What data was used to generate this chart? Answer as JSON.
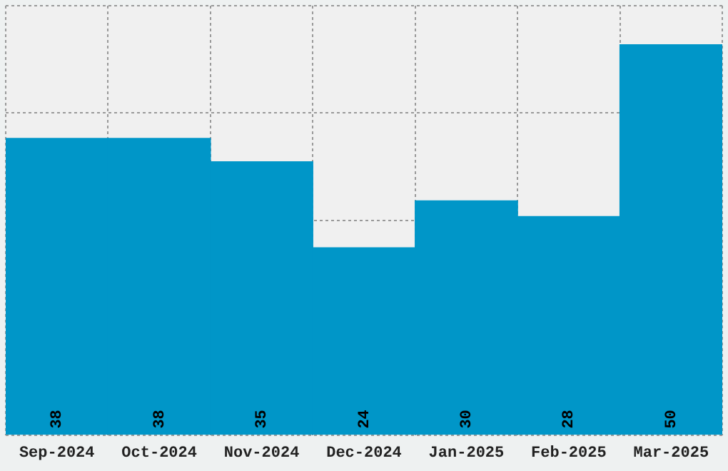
{
  "chart_data": {
    "type": "bar",
    "categories": [
      "Sep-2024",
      "Oct-2024",
      "Nov-2024",
      "Dec-2024",
      "Jan-2025",
      "Feb-2025",
      "Mar-2025"
    ],
    "values": [
      38,
      38,
      35,
      24,
      30,
      28,
      50
    ],
    "color": "#0096c8",
    "ylim": [
      0,
      55
    ],
    "grid": true,
    "data_labels": true,
    "tick_labels": "x"
  }
}
